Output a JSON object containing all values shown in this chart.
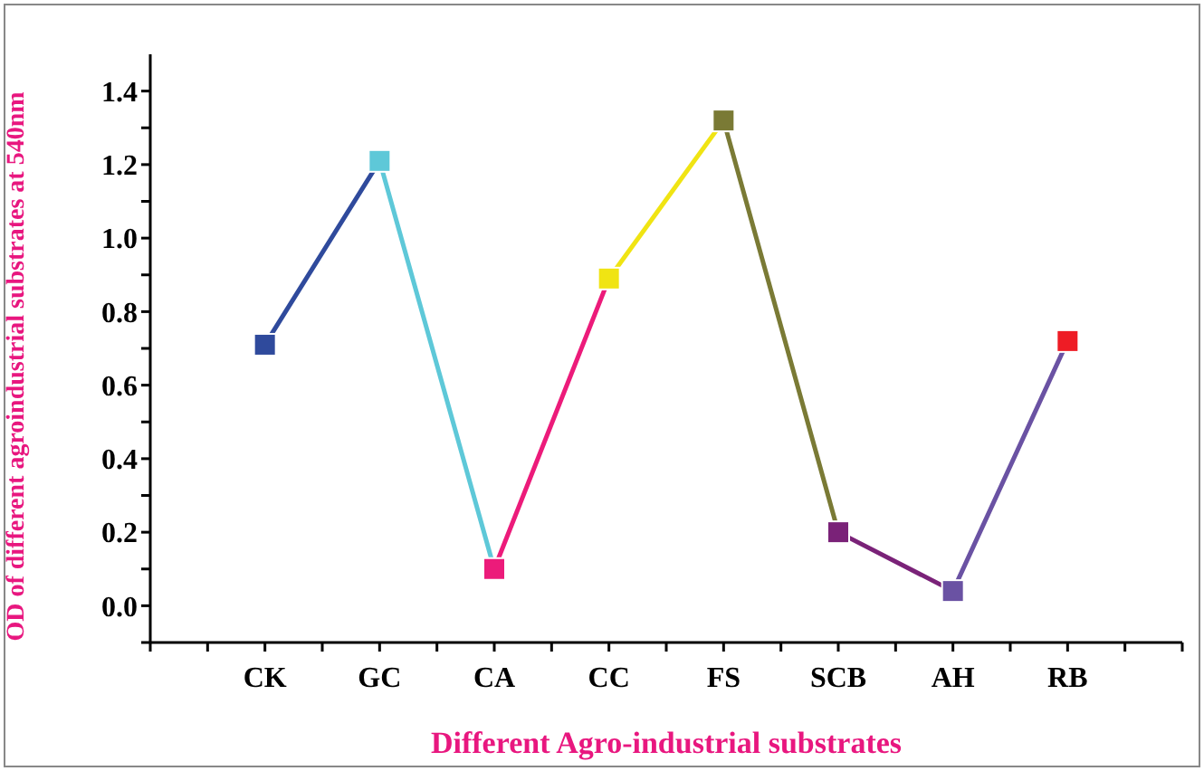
{
  "chart_data": {
    "type": "line",
    "xlabel": "Different Agro-industrial substrates",
    "ylabel": "OD of different agroindustrial substrates at 540nm",
    "categories": [
      "CK",
      "GC",
      "CA",
      "CC",
      "FS",
      "SCB",
      "AH",
      "RB"
    ],
    "series": [
      {
        "values": [
          0.71,
          1.21,
          0.1,
          0.89,
          1.32,
          0.2,
          0.04,
          0.72
        ],
        "colors": [
          "#2f4a9c",
          "#5ec8d8",
          "#ec1b7a",
          "#f0e413",
          "#7a7a35",
          "#7a2278",
          "#6a52a3",
          "#ee1c25"
        ]
      }
    ],
    "ylim": [
      -0.1,
      1.5
    ],
    "yticks": [
      {
        "value": -0.1,
        "label": null
      },
      {
        "value": 0,
        "label": "0.0"
      },
      {
        "value": 0.1,
        "label": null
      },
      {
        "value": 0.2,
        "label": "0.2"
      },
      {
        "value": 0.3,
        "label": null
      },
      {
        "value": 0.4,
        "label": "0.4"
      },
      {
        "value": 0.5,
        "label": null
      },
      {
        "value": 0.6,
        "label": "0.6"
      },
      {
        "value": 0.7,
        "label": null
      },
      {
        "value": 0.8,
        "label": "0.8"
      },
      {
        "value": 0.9,
        "label": null
      },
      {
        "value": 1,
        "label": "1.0"
      },
      {
        "value": 1.1,
        "label": null
      },
      {
        "value": 1.2,
        "label": "1.2"
      },
      {
        "value": 1.3,
        "label": null
      },
      {
        "value": 1.4,
        "label": "1.4"
      }
    ],
    "marker": "square",
    "line_style": "solid",
    "grid": false,
    "legend": false
  }
}
